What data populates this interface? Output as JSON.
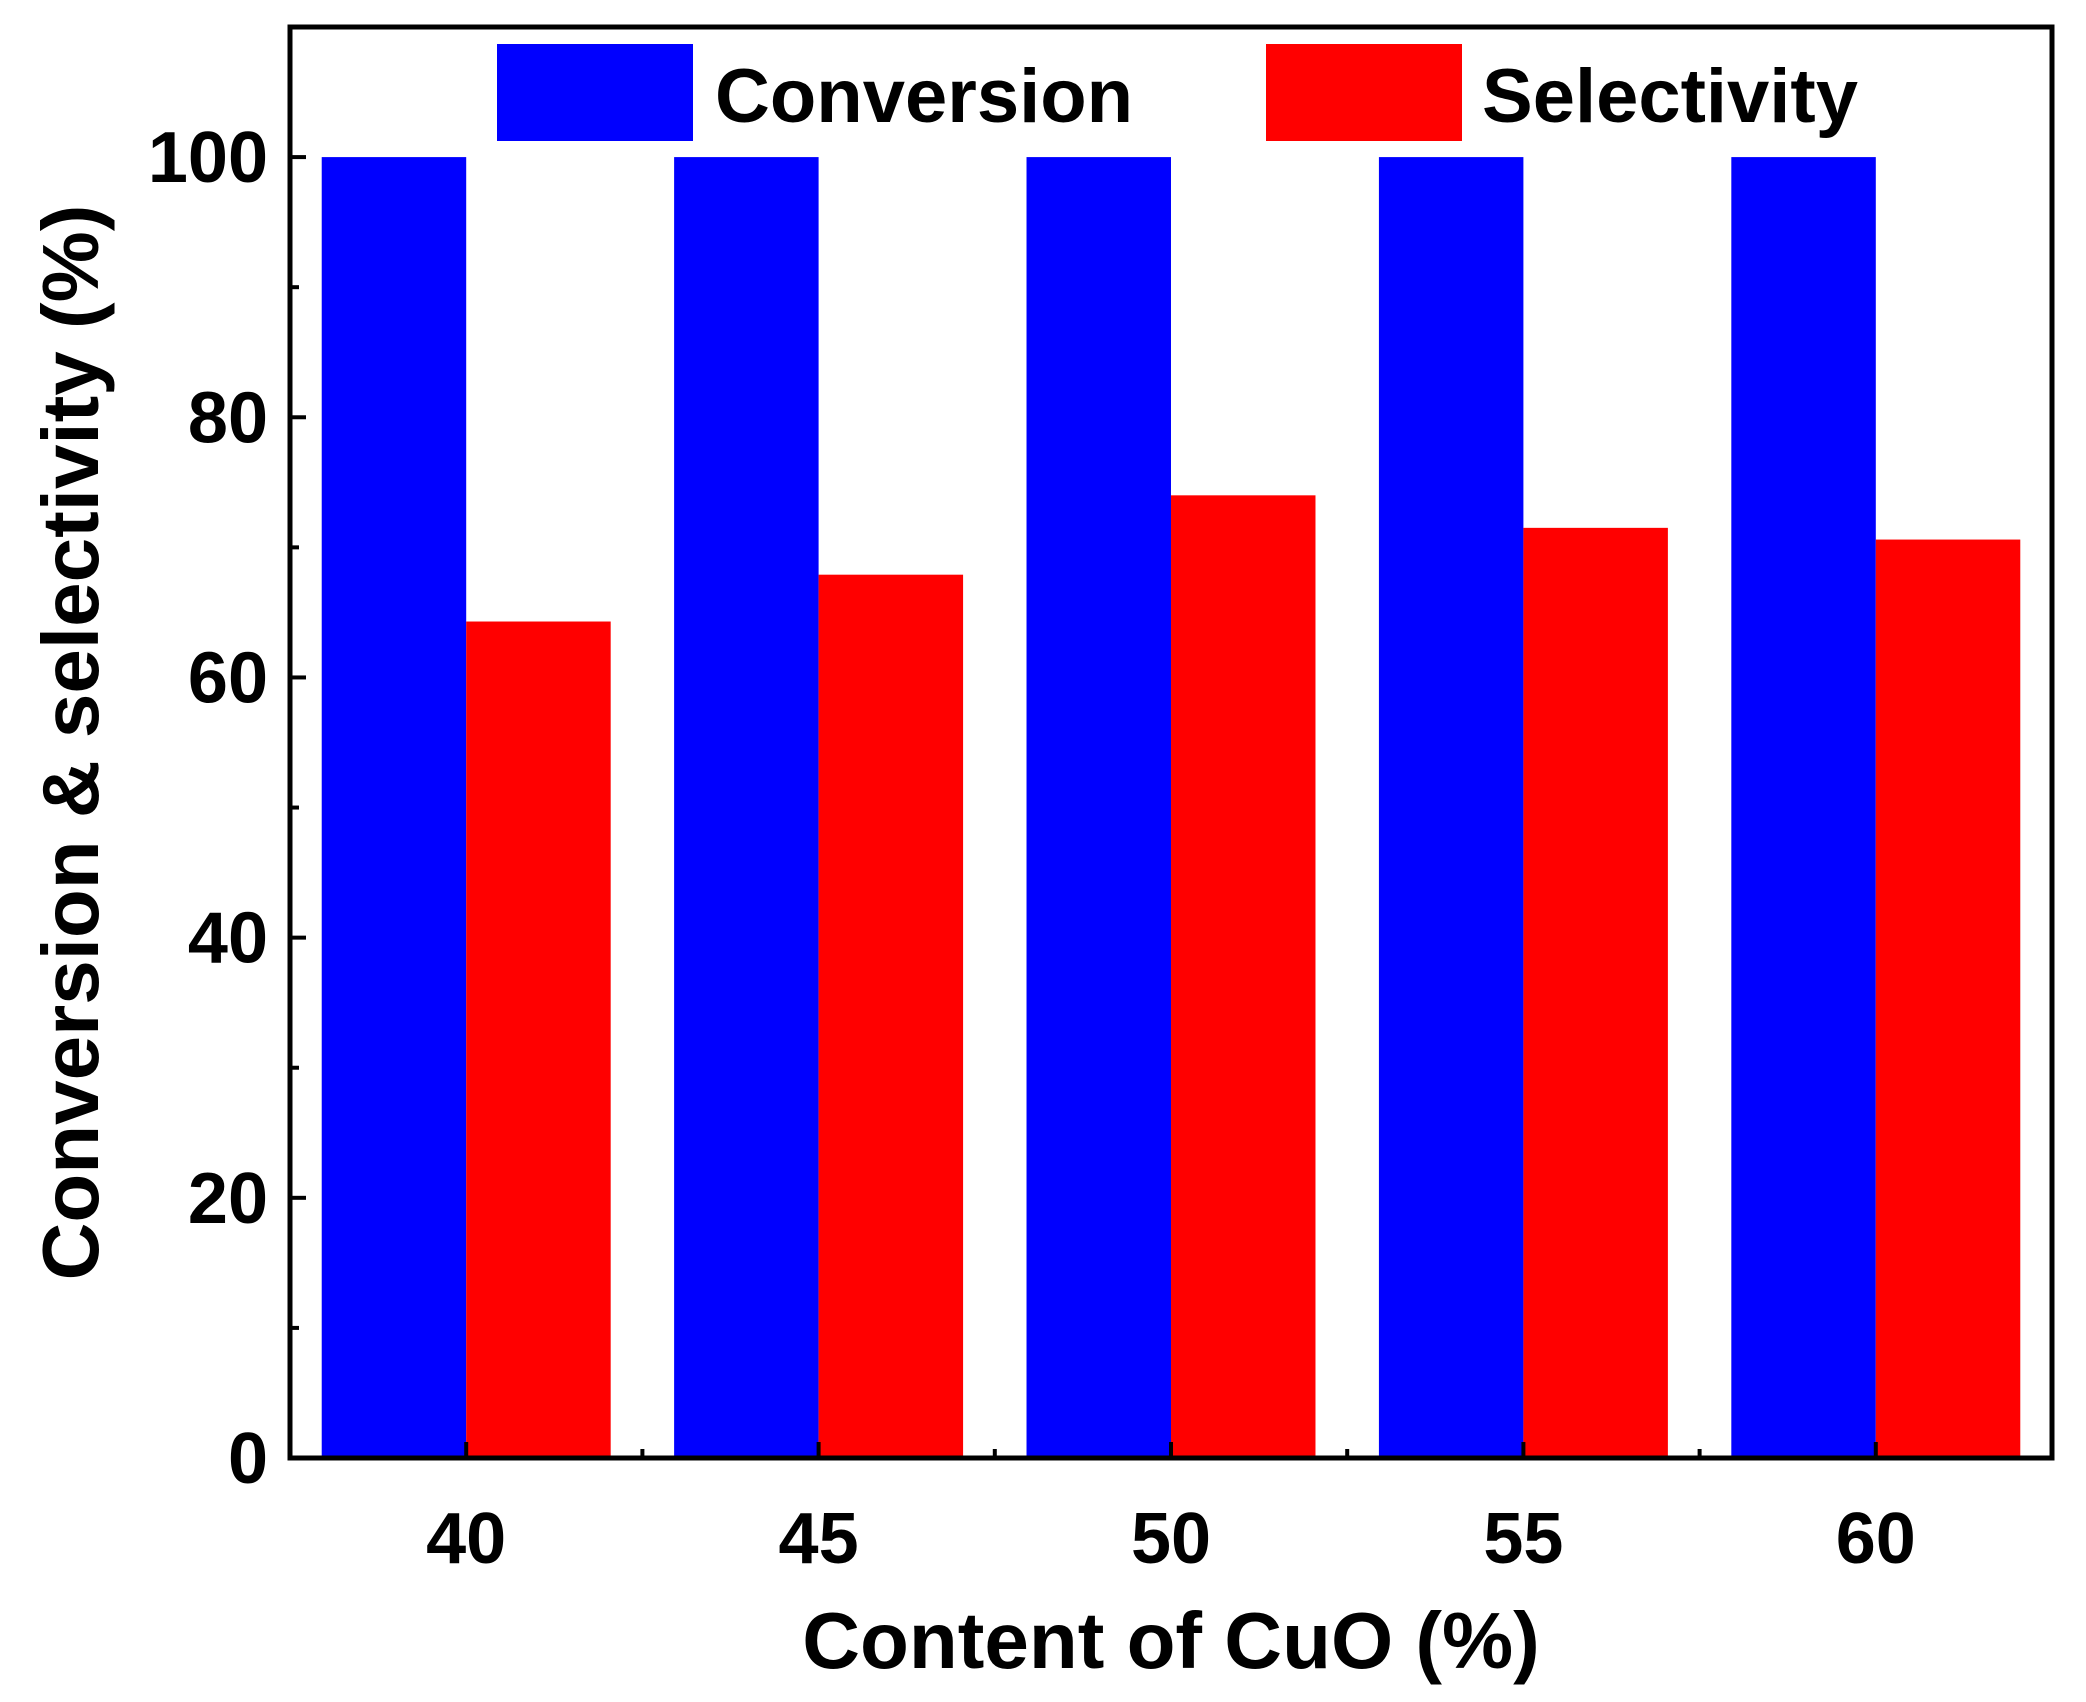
{
  "chart_data": {
    "type": "bar",
    "title": "",
    "xlabel": "Content of CuO (%)",
    "ylabel": "Conversion & selectivity (%)",
    "categories": [
      "40",
      "45",
      "50",
      "55",
      "60"
    ],
    "series": [
      {
        "name": "Conversion",
        "color": "#0000ff",
        "values": [
          100,
          100,
          100,
          100,
          100
        ]
      },
      {
        "name": "Selectivity",
        "color": "#ff0000",
        "values": [
          64.3,
          67.9,
          74.0,
          71.5,
          70.6
        ]
      }
    ],
    "ylim": [
      0,
      110
    ],
    "yticks": [
      0,
      20,
      40,
      60,
      80,
      100
    ],
    "y_minor_ticks": [
      10,
      30,
      50,
      70,
      90
    ],
    "legend": {
      "position": "top",
      "orientation": "horizontal"
    },
    "grid": false
  }
}
